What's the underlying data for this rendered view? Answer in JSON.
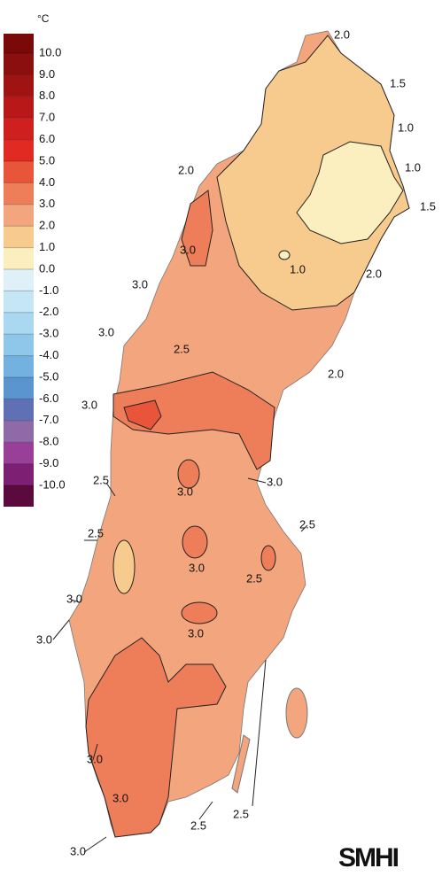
{
  "legend": {
    "unit": "°C",
    "labels": [
      "10.0",
      "9.0",
      "8.0",
      "7.0",
      "6.0",
      "5.0",
      "4.0",
      "3.0",
      "2.0",
      "1.0",
      "0.0",
      "-1.0",
      "-2.0",
      "-3.0",
      "-4.0",
      "-5.0",
      "-6.0",
      "-7.0",
      "-8.0",
      "-9.0",
      "-10.0"
    ],
    "colors": [
      "#7a0a0a",
      "#8b0f0f",
      "#a01313",
      "#b81818",
      "#cf1f1f",
      "#e02a22",
      "#e8553a",
      "#ee7d5a",
      "#f3a57e",
      "#f7cb8e",
      "#fbeebf",
      "#dff0f8",
      "#c5e6f5",
      "#a9d8f0",
      "#8ec7ea",
      "#73b1e0",
      "#5b95cf",
      "#5f70b5",
      "#8f6aa8",
      "#9a3f98",
      "#7d1f73",
      "#5a0a3c"
    ]
  },
  "contour_labels": [
    "2.0",
    "1.5",
    "1.0",
    "1.0",
    "1.5",
    "2.0",
    "3.0",
    "1.0",
    "2.0",
    "3.0",
    "3.0",
    "2.5",
    "2.0",
    "3.0",
    "2.5",
    "3.0",
    "3.0",
    "2.5",
    "2.5",
    "3.0",
    "2.5",
    "3.0",
    "3.0",
    "3.0",
    "3.0",
    "3.0",
    "2.5",
    "2.5",
    "3.0"
  ],
  "logo": "SMHI"
}
